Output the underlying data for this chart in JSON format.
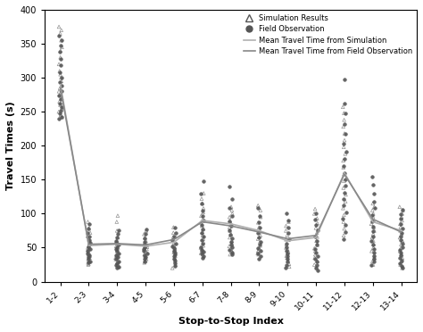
{
  "x_labels": [
    "1-2",
    "2-3",
    "3-4",
    "4-5",
    "5-6",
    "6-7",
    "7-8",
    "8-9",
    "9-10",
    "10-11",
    "11-12",
    "12-13",
    "13-14"
  ],
  "mean_sim": [
    290,
    53,
    55,
    52,
    58,
    90,
    85,
    75,
    60,
    65,
    160,
    88,
    75
  ],
  "mean_field": [
    285,
    55,
    56,
    54,
    62,
    88,
    82,
    73,
    63,
    68,
    158,
    92,
    73
  ],
  "sim_scatter": {
    "1-2": [
      375,
      370,
      365,
      355,
      345,
      340,
      330,
      320,
      310,
      305,
      300,
      295,
      285,
      280,
      275,
      270,
      265,
      260,
      255,
      250,
      245,
      242
    ],
    "2-3": [
      88,
      78,
      72,
      67,
      62,
      58,
      55,
      53,
      50,
      48,
      45,
      43,
      40,
      38,
      35,
      33,
      30,
      28,
      26,
      25
    ],
    "3-4": [
      97,
      88,
      75,
      65,
      60,
      55,
      52,
      50,
      48,
      45,
      43,
      40,
      38,
      35,
      33,
      30,
      28,
      25,
      22
    ],
    "4-5": [
      75,
      70,
      65,
      60,
      57,
      54,
      51,
      48,
      45,
      43,
      40,
      38,
      35,
      33,
      30,
      28
    ],
    "5-6": [
      80,
      72,
      66,
      61,
      56,
      53,
      50,
      48,
      45,
      43,
      40,
      38,
      35,
      30,
      25,
      20
    ],
    "6-7": [
      130,
      122,
      115,
      108,
      102,
      97,
      92,
      87,
      82,
      78,
      73,
      68,
      63,
      58,
      53,
      50,
      47,
      44,
      42,
      40
    ],
    "7-8": [
      110,
      105,
      100,
      95,
      90,
      85,
      80,
      75,
      70,
      65,
      60,
      55,
      52,
      48,
      45,
      43,
      40
    ],
    "8-9": [
      112,
      105,
      95,
      87,
      80,
      74,
      68,
      63,
      58,
      53,
      49,
      45,
      42,
      40
    ],
    "9-10": [
      88,
      82,
      75,
      68,
      62,
      55,
      50,
      47,
      44,
      41,
      38,
      35,
      30,
      26,
      22
    ],
    "10-11": [
      107,
      100,
      93,
      86,
      79,
      72,
      66,
      60,
      54,
      49,
      45,
      40,
      35,
      30,
      25,
      20
    ],
    "11-12": [
      257,
      248,
      238,
      228,
      218,
      208,
      198,
      188,
      178,
      168,
      158,
      148,
      138,
      128,
      118,
      108,
      98,
      88,
      78,
      68
    ],
    "12-13": [
      115,
      110,
      105,
      100,
      95,
      90,
      85,
      80,
      75,
      70,
      65,
      60,
      55,
      50,
      45,
      40,
      35,
      30,
      25
    ],
    "13-14": [
      110,
      105,
      100,
      95,
      90,
      85,
      80,
      75,
      70,
      65,
      60,
      55,
      50,
      45,
      40,
      35,
      30,
      25,
      20
    ]
  },
  "field_scatter": {
    "1-2": [
      362,
      355,
      347,
      338,
      328,
      318,
      308,
      300,
      294,
      288,
      280,
      274,
      268,
      262,
      257,
      252,
      247,
      243,
      240
    ],
    "2-3": [
      85,
      78,
      72,
      66,
      61,
      57,
      54,
      51,
      48,
      45,
      42,
      39,
      36,
      33,
      30,
      28
    ],
    "3-4": [
      75,
      70,
      65,
      60,
      57,
      54,
      51,
      48,
      45,
      42,
      39,
      36,
      33,
      30,
      27,
      24,
      22,
      20
    ],
    "4-5": [
      77,
      70,
      64,
      58,
      54,
      51,
      48,
      45,
      42,
      39,
      36,
      33,
      30
    ],
    "5-6": [
      79,
      72,
      66,
      61,
      56,
      52,
      49,
      46,
      43,
      40,
      37,
      34,
      31,
      27,
      23
    ],
    "6-7": [
      148,
      130,
      115,
      105,
      97,
      90,
      83,
      77,
      72,
      66,
      61,
      56,
      51,
      47,
      44,
      41,
      38,
      35
    ],
    "7-8": [
      140,
      122,
      108,
      97,
      89,
      82,
      75,
      69,
      64,
      59,
      55,
      51,
      47,
      43,
      40
    ],
    "8-9": [
      108,
      97,
      87,
      79,
      72,
      65,
      59,
      54,
      49,
      45,
      41,
      37,
      33
    ],
    "9-10": [
      100,
      90,
      80,
      71,
      63,
      56,
      50,
      45,
      41,
      37,
      33,
      29,
      25,
      21
    ],
    "10-11": [
      100,
      91,
      83,
      75,
      67,
      60,
      54,
      48,
      43,
      38,
      33,
      29,
      25,
      21,
      17
    ],
    "11-12": [
      298,
      262,
      247,
      232,
      217,
      203,
      191,
      180,
      170,
      160,
      151,
      141,
      131,
      121,
      112,
      102,
      92,
      83,
      73,
      63
    ],
    "12-13": [
      155,
      142,
      130,
      118,
      108,
      98,
      89,
      81,
      74,
      67,
      60,
      54,
      48,
      43,
      38,
      33,
      29,
      25
    ],
    "13-14": [
      106,
      99,
      92,
      85,
      78,
      72,
      66,
      61,
      56,
      51,
      47,
      43,
      39,
      35,
      31,
      27,
      23,
      20
    ]
  },
  "xlabel": "Stop-to-Stop Index",
  "ylabel": "Travel Times (s)",
  "ylim": [
    0,
    400
  ],
  "yticks": [
    0,
    50,
    100,
    150,
    200,
    250,
    300,
    350,
    400
  ],
  "sim_color": "#888888",
  "field_color": "#555555",
  "mean_sim_color": "#b0b0b0",
  "mean_field_color": "#888888",
  "background_color": "#ffffff"
}
